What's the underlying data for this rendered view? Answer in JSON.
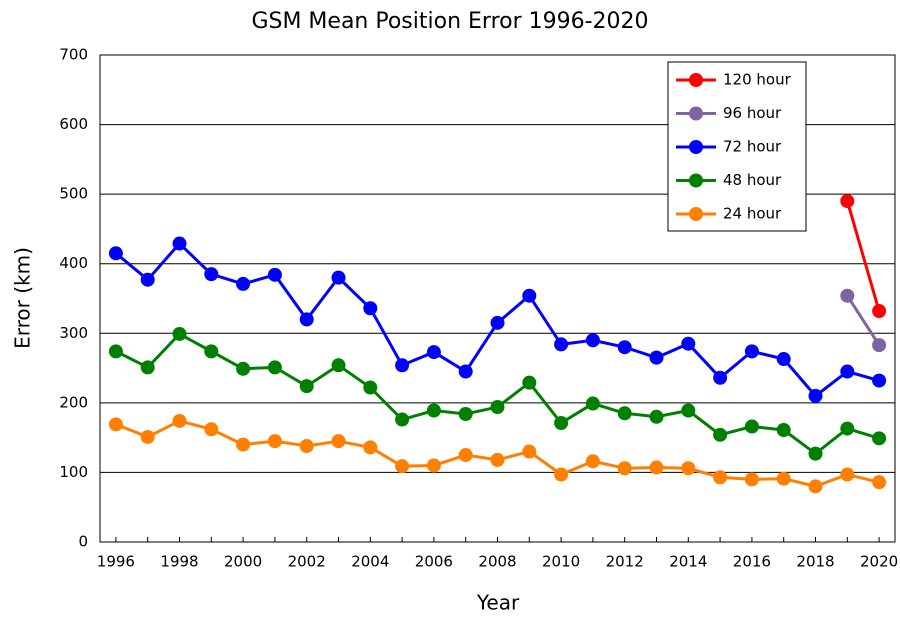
{
  "chart_data": {
    "type": "line",
    "title": "GSM Mean Position Error 1996-2020",
    "x_label": "Year",
    "y_label": "Error (km)",
    "categories": [
      "1996",
      null,
      "1998",
      null,
      "2000",
      null,
      "2002",
      null,
      "2004",
      null,
      "2006",
      null,
      "2008",
      null,
      "2010",
      null,
      "2012",
      null,
      "2014",
      null,
      "2016",
      null,
      "2018",
      null,
      "2020"
    ],
    "series": [
      {
        "name": "120 hour",
        "color": "#ff0000",
        "values": [
          null,
          null,
          null,
          null,
          null,
          null,
          null,
          null,
          null,
          null,
          null,
          null,
          null,
          null,
          null,
          null,
          null,
          null,
          null,
          null,
          null,
          null,
          null,
          490,
          332
        ]
      },
      {
        "name": "96 hour",
        "color": "#8064a2",
        "values": [
          null,
          null,
          null,
          null,
          null,
          null,
          null,
          null,
          null,
          null,
          null,
          null,
          null,
          null,
          null,
          null,
          null,
          null,
          null,
          null,
          null,
          null,
          null,
          354,
          283
        ]
      },
      {
        "name": "72 hour",
        "color": "#0000ff",
        "values": [
          415,
          377,
          429,
          385,
          371,
          384,
          320,
          380,
          336,
          254,
          273,
          245,
          315,
          354,
          284,
          290,
          280,
          265,
          285,
          236,
          274,
          263,
          210,
          245,
          232
        ]
      },
      {
        "name": "48 hour",
        "color": "#008000",
        "values": [
          274,
          251,
          299,
          274,
          249,
          251,
          224,
          254,
          222,
          176,
          189,
          184,
          194,
          229,
          171,
          199,
          185,
          180,
          189,
          154,
          166,
          161,
          127,
          163,
          149
        ]
      },
      {
        "name": "24 hour",
        "color": "#ff7f00",
        "values": [
          169,
          151,
          174,
          162,
          140,
          145,
          138,
          145,
          136,
          109,
          110,
          125,
          118,
          130,
          97,
          116,
          106,
          107,
          106,
          93,
          90,
          91,
          80,
          97,
          86
        ]
      }
    ],
    "ylim": [
      0,
      700
    ],
    "yticks": [
      0,
      100,
      200,
      300,
      400,
      500,
      600,
      700
    ],
    "grid": true,
    "legend": "upper right"
  }
}
